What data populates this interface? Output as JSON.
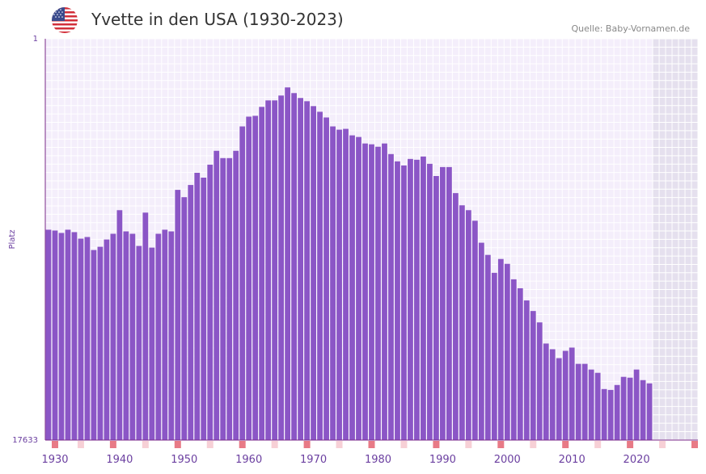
{
  "header": {
    "title": "Yvette in den USA (1930-2023)",
    "source": "Quelle: Baby-Vornamen.de",
    "flag_icon": "usa-flag-icon"
  },
  "colors": {
    "bar": "#8b56c6",
    "plot_bg": "#f4eefb",
    "grid": "#ffffff",
    "future_bg": "#e5e0ee",
    "axis": "#7a2a8a",
    "tick_label": "#6b3fa0",
    "marker_strong": "#e87a86",
    "marker_light": "#f7d0d6"
  },
  "chart_data": {
    "type": "bar",
    "title": "Yvette in den USA (1930-2023)",
    "xlabel": "",
    "ylabel": "Platz",
    "y_inverted": true,
    "ylim": [
      1,
      17633
    ],
    "y_ticks": [
      1,
      17633
    ],
    "x_range": [
      1929,
      2029
    ],
    "x_ticks": [
      1930,
      1940,
      1950,
      1960,
      1970,
      1980,
      1990,
      2000,
      2010,
      2020
    ],
    "future_from": 2023,
    "x": [
      1929,
      1930,
      1931,
      1932,
      1933,
      1934,
      1935,
      1936,
      1937,
      1938,
      1939,
      1940,
      1941,
      1942,
      1943,
      1944,
      1945,
      1946,
      1947,
      1948,
      1949,
      1950,
      1951,
      1952,
      1953,
      1954,
      1955,
      1956,
      1957,
      1958,
      1959,
      1960,
      1961,
      1962,
      1963,
      1964,
      1965,
      1966,
      1967,
      1968,
      1969,
      1970,
      1971,
      1972,
      1973,
      1974,
      1975,
      1976,
      1977,
      1978,
      1979,
      1980,
      1981,
      1982,
      1983,
      1984,
      1985,
      1986,
      1987,
      1988,
      1989,
      1990,
      1991,
      1992,
      1993,
      1994,
      1995,
      1996,
      1997,
      1998,
      1999,
      2000,
      2001,
      2002,
      2003,
      2004,
      2005,
      2006,
      2007,
      2008,
      2009,
      2010,
      2011,
      2012,
      2013,
      2014,
      2015,
      2016,
      2017,
      2018,
      2019,
      2020,
      2021,
      2022
    ],
    "values": [
      8390,
      8427,
      8533,
      8390,
      8497,
      8783,
      8711,
      9283,
      9140,
      8819,
      8569,
      7532,
      8462,
      8569,
      9104,
      7639,
      9175,
      8569,
      8390,
      8462,
      6639,
      6961,
      6425,
      5889,
      6103,
      5531,
      4924,
      5245,
      5245,
      4924,
      3852,
      3423,
      3387,
      2994,
      2709,
      2709,
      2495,
      2138,
      2388,
      2602,
      2745,
      2959,
      3209,
      3459,
      3852,
      3995,
      3959,
      4245,
      4316,
      4602,
      4638,
      4745,
      4602,
      5067,
      5388,
      5567,
      5281,
      5317,
      5174,
      5495,
      6032,
      5638,
      5638,
      6782,
      7318,
      7532,
      7996,
      8962,
      9497,
      10283,
      9676,
      9890,
      10569,
      10962,
      11498,
      11962,
      12462,
      13391,
      13641,
      14034,
      13713,
      13570,
      14284,
      14284,
      14534,
      14677,
      15391,
      15427,
      15213,
      14855,
      14891,
      14534,
      14999,
      15142
    ],
    "markers_strong": [
      1930,
      1939,
      1949,
      1959,
      1969,
      1979,
      1989,
      1999,
      2009,
      2019,
      2029
    ],
    "markers_light": [
      1934,
      1944,
      1954,
      1964,
      1974,
      1984,
      1994,
      2004,
      2014,
      2024
    ]
  }
}
